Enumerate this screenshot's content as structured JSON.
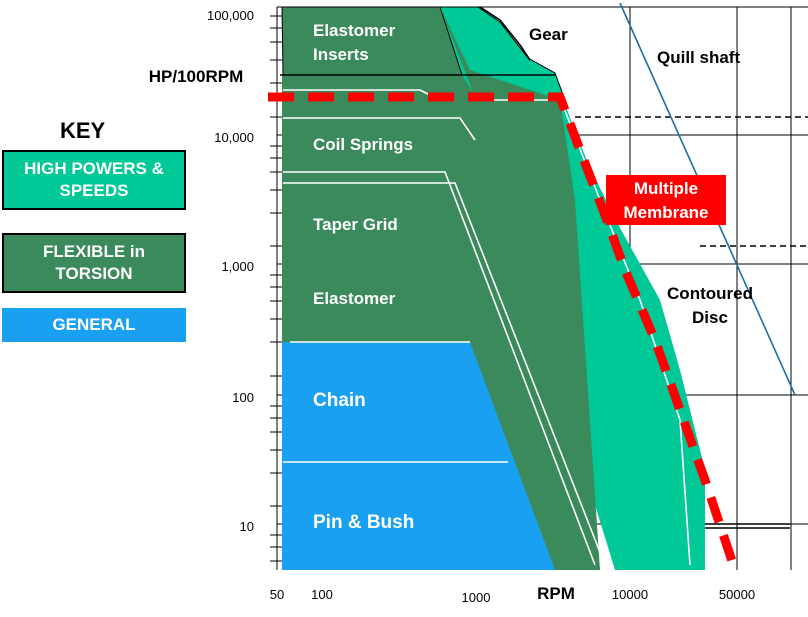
{
  "key": {
    "title": "KEY",
    "high_powers": "HIGH POWERS & SPEEDS",
    "flexible": "FLEXIBLE in TORSION",
    "general": "GENERAL",
    "colors": {
      "high": "#00c896",
      "flexible": "#3a8a5c",
      "general": "#1aa0f0",
      "membrane": "#ff0000"
    }
  },
  "axes": {
    "y_unit": "HP/100RPM",
    "y_ticks": [
      "100,000",
      "10,000",
      "1,000",
      "100",
      "10"
    ],
    "x_unit": "RPM",
    "x_ticks": [
      "50",
      "100",
      "1000",
      "10000",
      "50000"
    ]
  },
  "regions": {
    "elastomer_inserts": "Elastomer Inserts",
    "coil_springs": "Coil Springs",
    "taper_grid": "Taper Grid",
    "elastomer": "Elastomer",
    "chain": "Chain",
    "pin_bush": "Pin & Bush",
    "gear": "Gear",
    "quill_shaft": "Quill shaft",
    "multiple_membrane": "Multiple Membrane",
    "contoured_disc": "Contoured Disc"
  }
}
